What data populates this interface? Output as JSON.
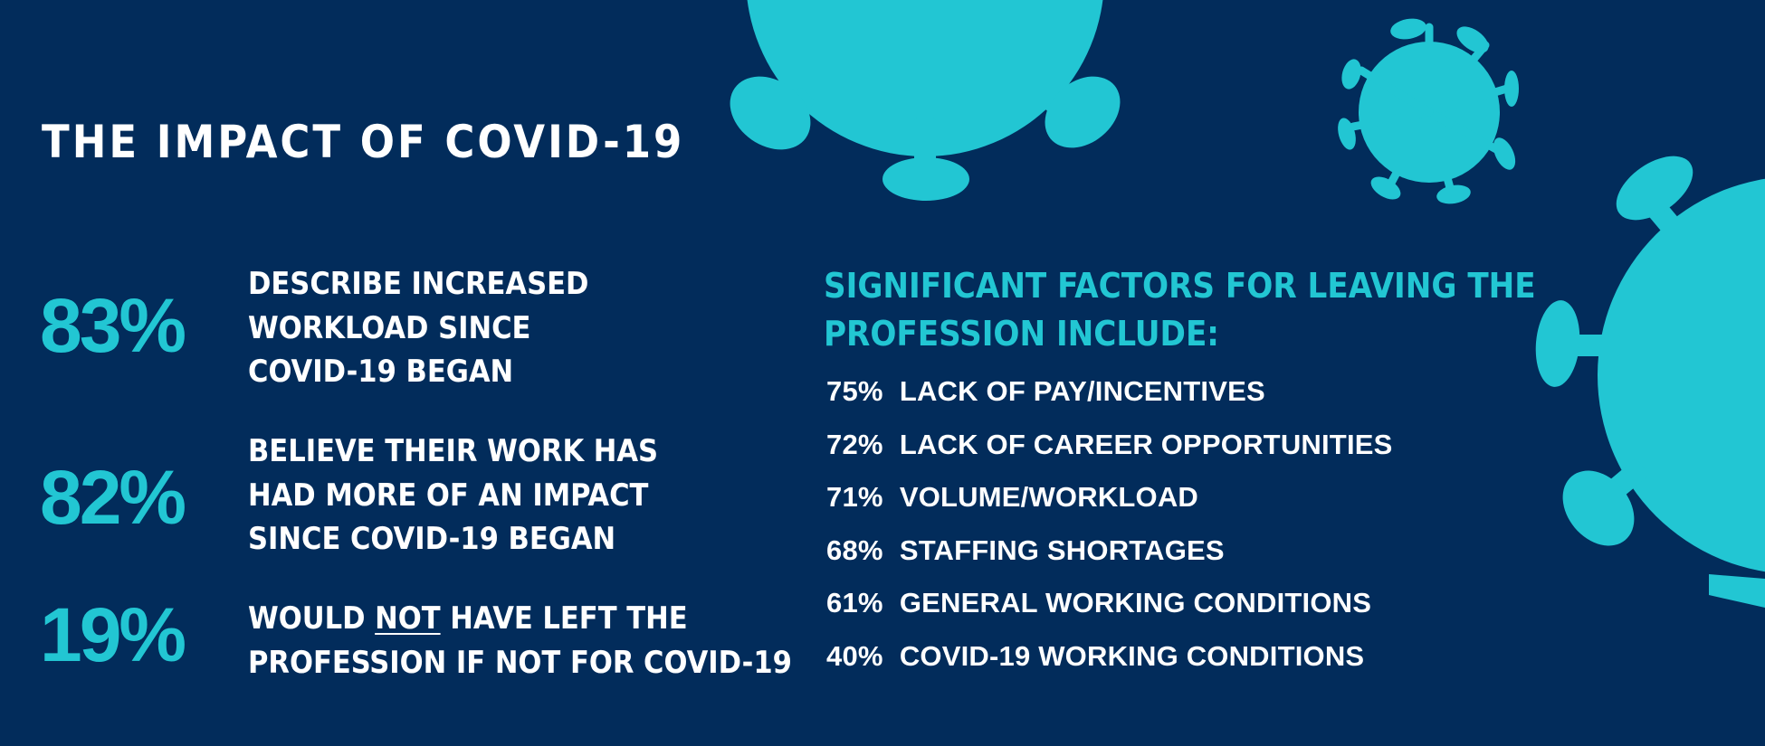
{
  "title": "THE IMPACT OF COVID-19",
  "colors": {
    "background": "#022c5b",
    "accent": "#22c6d3",
    "text": "#ffffff"
  },
  "stats": [
    {
      "value": "83%",
      "lines": [
        "DESCRIBE INCREASED",
        "WORKLOAD SINCE",
        "COVID-19 BEGAN"
      ]
    },
    {
      "value": "82%",
      "lines": [
        "BELIEVE THEIR WORK HAS",
        "HAD MORE OF AN IMPACT",
        "SINCE COVID-19 BEGAN"
      ]
    },
    {
      "value": "19%",
      "line1_pre": "WOULD ",
      "line1_emph": "NOT",
      "line1_post": " HAVE LEFT THE",
      "line2": "PROFESSION IF NOT FOR COVID-19"
    }
  ],
  "factors": {
    "heading_lines": [
      "SIGNIFICANT FACTORS FOR LEAVING THE",
      "PROFESSION INCLUDE:"
    ],
    "items": [
      {
        "pct": "75%",
        "label": "LACK OF PAY/INCENTIVES"
      },
      {
        "pct": "72%",
        "label": "LACK OF CAREER OPPORTUNITIES"
      },
      {
        "pct": "71%",
        "label": "VOLUME/WORKLOAD"
      },
      {
        "pct": "68%",
        "label": "STAFFING SHORTAGES"
      },
      {
        "pct": "61%",
        "label": "GENERAL WORKING CONDITIONS"
      },
      {
        "pct": "40%",
        "label": "COVID-19 WORKING CONDITIONS"
      }
    ]
  },
  "decorations": [
    {
      "icon": "virus-icon"
    },
    {
      "icon": "virus-icon"
    },
    {
      "icon": "virus-icon"
    }
  ]
}
